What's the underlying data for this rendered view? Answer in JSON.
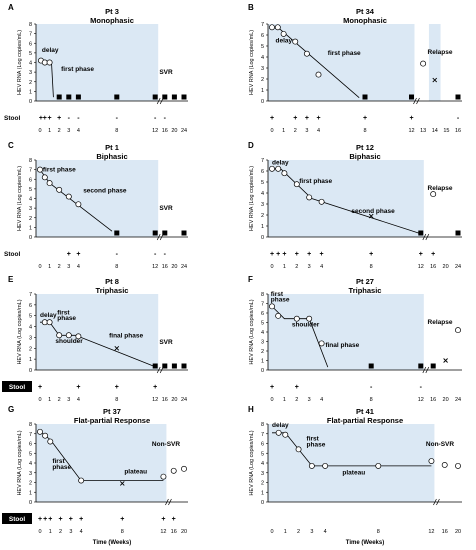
{
  "figure": {
    "ylabel": "HEV RNA (Log copies/mL)",
    "xlabel": "Time (Weeks)",
    "stool_label": "Stool"
  },
  "chart_data": [
    {
      "panel": "A",
      "type": "line",
      "title": "Pt 3",
      "subtitle": "Monophasic",
      "ylim": [
        0,
        8
      ],
      "outcome": "SVR",
      "x_ticks": [
        "0",
        "1",
        "2",
        "3",
        "4",
        "",
        "",
        "",
        "8",
        "",
        "",
        "",
        "12",
        "16",
        "20",
        "24"
      ],
      "circles": [
        [
          0.1,
          4.2
        ],
        [
          0.5,
          4.0
        ],
        [
          1,
          4.0
        ]
      ],
      "fit": [
        [
          0,
          4.2
        ],
        [
          1.2,
          4.0
        ],
        [
          1.4,
          0.4
        ]
      ],
      "squares": [
        2,
        3,
        4,
        8,
        12,
        16,
        20,
        24
      ],
      "x_marks": [],
      "stool": [
        [
          0.1,
          "+"
        ],
        [
          0.5,
          "+"
        ],
        [
          1,
          "+"
        ],
        [
          2,
          "+"
        ],
        [
          3,
          "-"
        ],
        [
          4,
          "-"
        ],
        [
          8,
          "-"
        ],
        [
          12,
          "-"
        ],
        [
          16,
          "-"
        ]
      ],
      "annotations": [
        {
          "text": "delay",
          "x": 0.2,
          "y": 5.1
        },
        {
          "text": "first phase",
          "x": 2.2,
          "y": 3.1
        }
      ]
    },
    {
      "panel": "B",
      "type": "line",
      "title": "Pt 34",
      "subtitle": "Monophasic",
      "ylim": [
        0,
        7
      ],
      "outcome": "Relapse",
      "x_ticks": [
        "0",
        "1",
        "2",
        "3",
        "4",
        "",
        "",
        "",
        "8",
        "",
        "",
        "",
        "12",
        "13",
        "14",
        "15",
        "16"
      ],
      "circles": [
        [
          0,
          6.7
        ],
        [
          0.5,
          6.7
        ],
        [
          1,
          6.1
        ],
        [
          2,
          5.4
        ],
        [
          3,
          4.3
        ],
        [
          4,
          2.4
        ],
        [
          13,
          3.4
        ]
      ],
      "fit": [
        [
          0,
          6.7
        ],
        [
          0.5,
          6.7
        ],
        [
          7.5,
          0.3
        ]
      ],
      "squares": [
        8,
        12,
        16
      ],
      "x_marks": [
        [
          14,
          1.9
        ]
      ],
      "stool": [
        [
          0,
          "+"
        ],
        [
          2,
          "+"
        ],
        [
          3,
          "+"
        ],
        [
          4,
          "+"
        ],
        [
          8,
          "+"
        ],
        [
          12,
          "+"
        ],
        [
          16,
          "-"
        ]
      ],
      "annotations": [
        {
          "text": "delay",
          "x": 0.3,
          "y": 5.3
        },
        {
          "text": "first phase",
          "x": 4.8,
          "y": 4.2
        }
      ]
    },
    {
      "panel": "C",
      "type": "line",
      "title": "Pt 1",
      "subtitle": "Biphasic",
      "ylim": [
        0,
        8
      ],
      "outcome": "SVR",
      "x_ticks": [
        "0",
        "1",
        "2",
        "3",
        "4",
        "",
        "",
        "",
        "8",
        "",
        "",
        "",
        "12",
        "16",
        "20",
        "24"
      ],
      "circles": [
        [
          0,
          7.0
        ],
        [
          0.5,
          6.2
        ],
        [
          1,
          5.6
        ],
        [
          2,
          4.9
        ],
        [
          3,
          4.2
        ],
        [
          4,
          3.4
        ]
      ],
      "fit": [
        [
          0,
          7.0
        ],
        [
          1,
          5.6
        ],
        [
          7.5,
          0.6
        ]
      ],
      "squares": [
        8,
        12,
        16,
        24
      ],
      "x_marks": [],
      "stool": [
        [
          3,
          "+"
        ],
        [
          4,
          "+"
        ],
        [
          8,
          "-"
        ],
        [
          12,
          "-"
        ],
        [
          16,
          "-"
        ]
      ],
      "annotations": [
        {
          "text": "first phase",
          "x": 0.3,
          "y": 6.8
        },
        {
          "text": "second phase",
          "x": 4.5,
          "y": 4.6
        }
      ]
    },
    {
      "panel": "D",
      "type": "line",
      "title": "Pt 12",
      "subtitle": "Biphasic",
      "ylim": [
        0,
        7
      ],
      "outcome": "Relapse",
      "x_ticks": [
        "0",
        "1",
        "2",
        "3",
        "4",
        "",
        "",
        "",
        "8",
        "",
        "",
        "",
        "12",
        "16",
        "20",
        "24"
      ],
      "circles": [
        [
          0,
          6.2
        ],
        [
          0.5,
          6.2
        ],
        [
          1,
          5.8
        ],
        [
          2,
          4.8
        ],
        [
          3,
          3.6
        ],
        [
          4,
          3.2
        ],
        [
          16,
          3.9
        ]
      ],
      "fit": [
        [
          0,
          6.2
        ],
        [
          0.7,
          6.2
        ],
        [
          3.2,
          3.5
        ],
        [
          12,
          0.3
        ]
      ],
      "squares": [
        12,
        24
      ],
      "x_marks": [
        [
          8,
          1.9
        ]
      ],
      "stool": [
        [
          0,
          "+"
        ],
        [
          0.5,
          "+"
        ],
        [
          1,
          "+"
        ],
        [
          2,
          "+"
        ],
        [
          3,
          "+"
        ],
        [
          4,
          "+"
        ],
        [
          8,
          "+"
        ],
        [
          12,
          "+"
        ],
        [
          16,
          "+"
        ]
      ],
      "annotations": [
        {
          "text": "delay",
          "x": 0,
          "y": 6.6
        },
        {
          "text": "first phase",
          "x": 2.2,
          "y": 4.9
        },
        {
          "text": "second phase",
          "x": 6.4,
          "y": 2.2
        }
      ]
    },
    {
      "panel": "E",
      "type": "line",
      "title": "Pt 8",
      "subtitle": "Triphasic",
      "ylim": [
        0,
        7
      ],
      "outcome": "SVR",
      "x_ticks": [
        "0",
        "1",
        "2",
        "3",
        "4",
        "",
        "",
        "",
        "8",
        "",
        "",
        "",
        "12",
        "16",
        "20",
        "24"
      ],
      "circles": [
        [
          0.5,
          4.4
        ],
        [
          1,
          4.4
        ],
        [
          2,
          3.2
        ],
        [
          3,
          3.2
        ],
        [
          4,
          3.1
        ]
      ],
      "fit": [
        [
          0,
          4.4
        ],
        [
          1,
          4.4
        ],
        [
          2,
          3.2
        ],
        [
          3.7,
          3.2
        ],
        [
          12,
          0.3
        ]
      ],
      "squares": [
        12,
        16,
        20,
        24
      ],
      "x_marks": [
        [
          8,
          2.0
        ]
      ],
      "stool": [
        [
          0,
          "+"
        ],
        [
          4,
          "+"
        ],
        [
          8,
          "+"
        ],
        [
          12,
          "+"
        ]
      ],
      "annotations": [
        {
          "text": "delay",
          "x": 0,
          "y": 4.9
        },
        {
          "text": "first",
          "x": 1.8,
          "y": 5.1
        },
        {
          "text": "phase",
          "x": 1.8,
          "y": 4.6
        },
        {
          "text": "shoulder",
          "x": 1.6,
          "y": 2.5
        },
        {
          "text": "final phase",
          "x": 7.2,
          "y": 3.0
        }
      ]
    },
    {
      "panel": "F",
      "type": "line",
      "title": "Pt 27",
      "subtitle": "Triphasic",
      "ylim": [
        0,
        8
      ],
      "outcome": "Relapse",
      "x_ticks": [
        "0",
        "1",
        "2",
        "3",
        "4",
        "",
        "",
        "",
        "8",
        "",
        "",
        "",
        "12",
        "16",
        "20",
        "24"
      ],
      "circles": [
        [
          0,
          6.7
        ],
        [
          0.5,
          5.7
        ],
        [
          2,
          5.4
        ],
        [
          3,
          5.4
        ],
        [
          4,
          2.8
        ],
        [
          24,
          4.2
        ]
      ],
      "fit": [
        [
          0,
          6.7
        ],
        [
          1,
          5.4
        ],
        [
          3,
          5.4
        ],
        [
          4.5,
          0.3
        ]
      ],
      "squares": [
        8,
        12,
        16
      ],
      "x_marks": [
        [
          20,
          1.0
        ]
      ],
      "stool": [
        [
          0,
          "+"
        ],
        [
          2,
          "+"
        ],
        [
          8,
          "-"
        ],
        [
          12,
          "-"
        ]
      ],
      "annotations": [
        {
          "text": "first",
          "x": -0.1,
          "y": 7.8
        },
        {
          "text": "phase",
          "x": -0.1,
          "y": 7.2
        },
        {
          "text": "shoulder",
          "x": 1.6,
          "y": 4.6
        },
        {
          "text": "final phase",
          "x": 4.3,
          "y": 2.4
        }
      ]
    },
    {
      "panel": "G",
      "type": "line",
      "title": "Pt 37",
      "subtitle": "Flat-partial Response",
      "ylim": [
        0,
        8
      ],
      "outcome": "Non-SVR",
      "x_ticks": [
        "0",
        "1",
        "2",
        "3",
        "4",
        "",
        "",
        "",
        "8",
        "",
        "",
        "",
        "12",
        "16",
        "20"
      ],
      "circles": [
        [
          0,
          7.2
        ],
        [
          0.5,
          6.8
        ],
        [
          1,
          6.2
        ],
        [
          4,
          2.2
        ],
        [
          12,
          2.6
        ],
        [
          16,
          3.2
        ],
        [
          20,
          3.4
        ]
      ],
      "fit": [
        [
          0,
          7.2
        ],
        [
          1,
          6.4
        ],
        [
          4,
          2.2
        ],
        [
          12,
          2.2
        ]
      ],
      "squares": [],
      "x_marks": [
        [
          8,
          1.9
        ]
      ],
      "stool": [
        [
          0,
          "+"
        ],
        [
          0.5,
          "+"
        ],
        [
          1,
          "+"
        ],
        [
          2,
          "+"
        ],
        [
          3,
          "+"
        ],
        [
          4,
          "+"
        ],
        [
          8,
          "+"
        ],
        [
          12,
          "+"
        ],
        [
          16,
          "+"
        ]
      ],
      "annotations": [
        {
          "text": "first",
          "x": 1.2,
          "y": 4.0
        },
        {
          "text": "phase",
          "x": 1.2,
          "y": 3.4
        },
        {
          "text": "plateau",
          "x": 8.2,
          "y": 2.9
        }
      ]
    },
    {
      "panel": "H",
      "type": "line",
      "title": "Pt 41",
      "subtitle": "Flat-partial Response",
      "ylim": [
        0,
        8
      ],
      "outcome": "Non-SVR",
      "x_ticks": [
        "0",
        "1",
        "2",
        "3",
        "4",
        "",
        "",
        "",
        "8",
        "",
        "",
        "",
        "12",
        "16",
        "20"
      ],
      "circles": [
        [
          0.5,
          7.1
        ],
        [
          1,
          6.9
        ],
        [
          2,
          5.4
        ],
        [
          3,
          3.7
        ],
        [
          4,
          3.7
        ],
        [
          8,
          3.7
        ],
        [
          12,
          4.2
        ],
        [
          16,
          3.8
        ],
        [
          20,
          3.7
        ]
      ],
      "fit": [
        [
          0,
          7.1
        ],
        [
          1,
          7.1
        ],
        [
          3,
          3.7
        ],
        [
          12,
          3.7
        ]
      ],
      "squares": [],
      "x_marks": [],
      "stool": [],
      "annotations": [
        {
          "text": "delay",
          "x": 0,
          "y": 7.7
        },
        {
          "text": "first",
          "x": 2.6,
          "y": 6.3
        },
        {
          "text": "phase",
          "x": 2.6,
          "y": 5.7
        },
        {
          "text": "plateau",
          "x": 5.3,
          "y": 2.8
        }
      ]
    }
  ]
}
